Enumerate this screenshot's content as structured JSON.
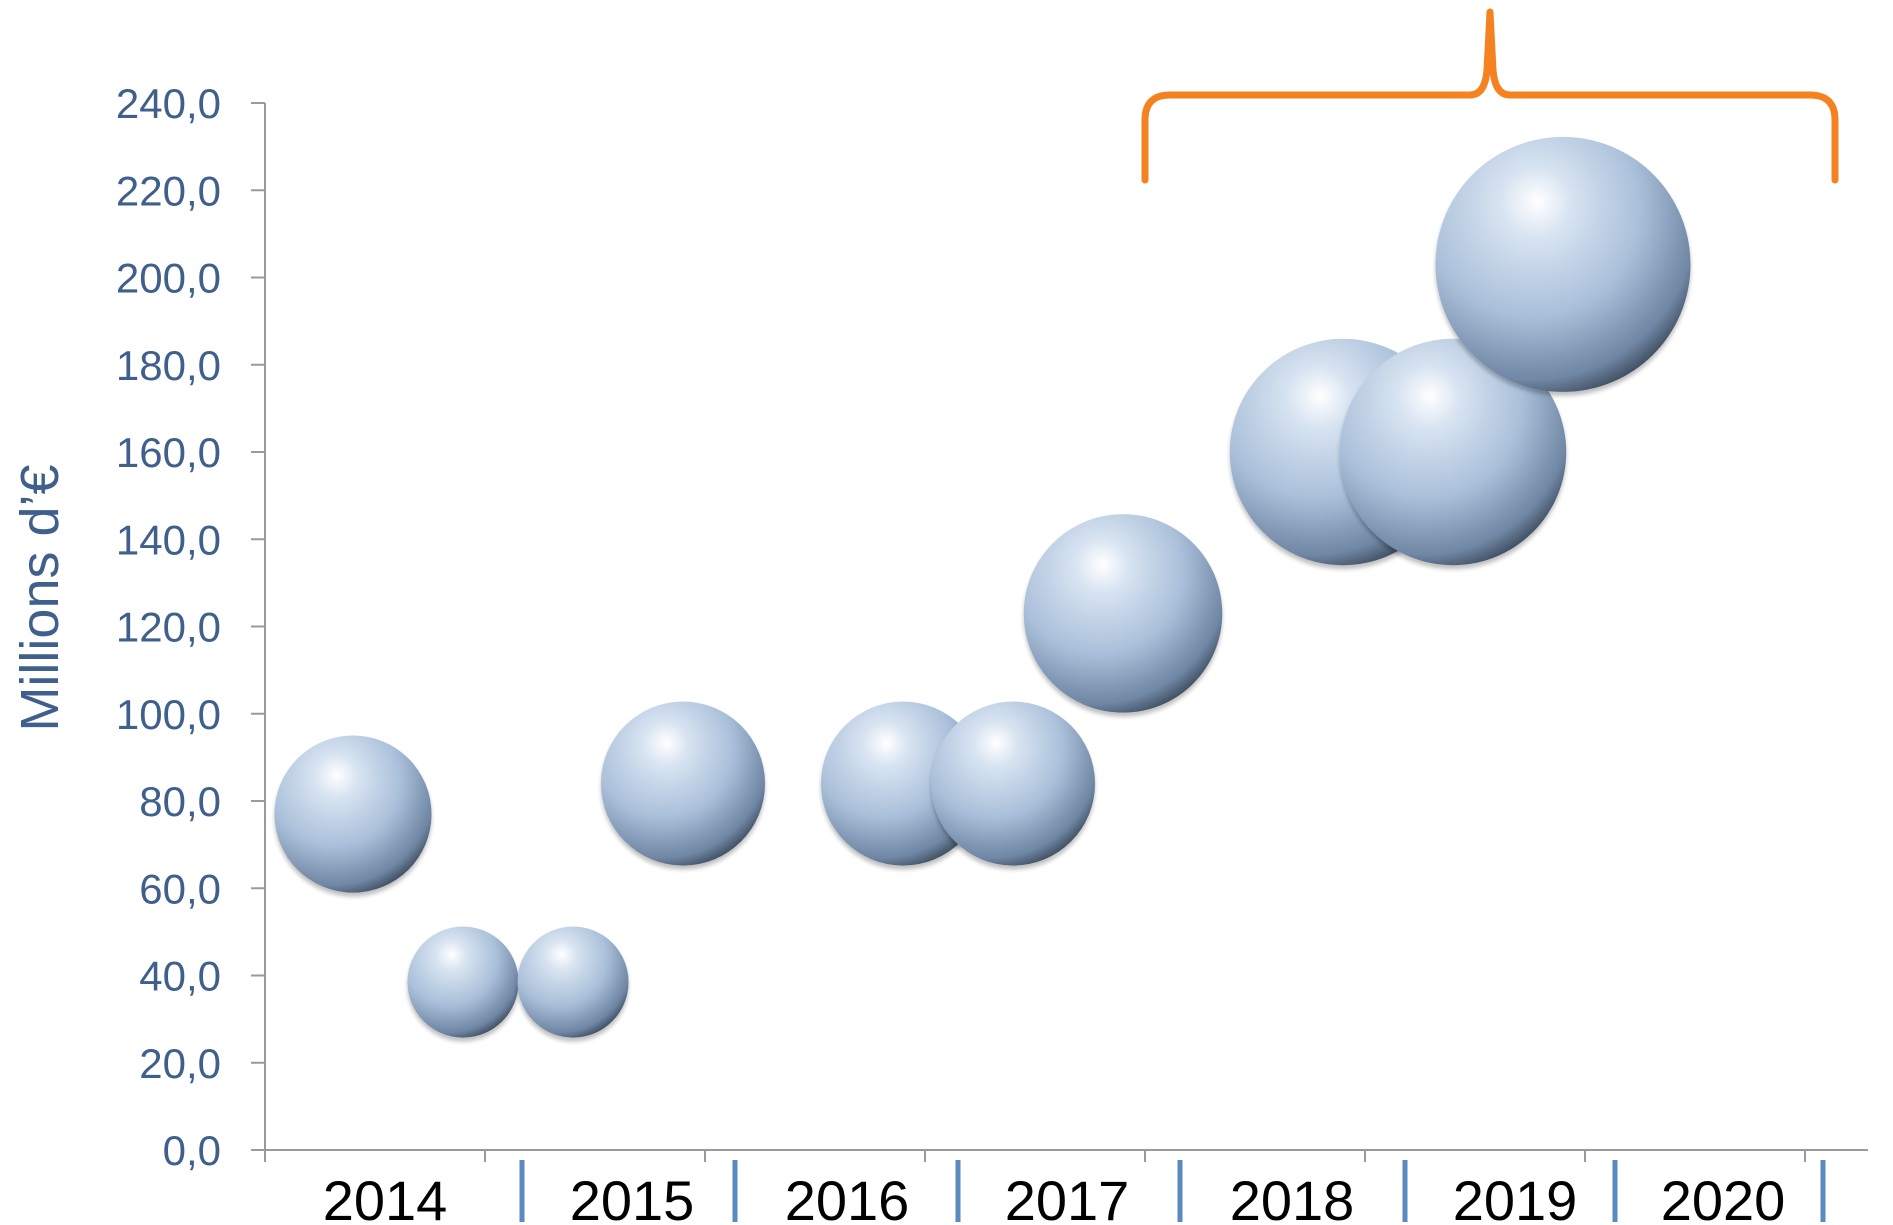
{
  "chart_data": {
    "type": "scatter",
    "subtype": "bubble",
    "title": "",
    "xlabel": "",
    "ylabel": "Millions d’€",
    "ylim": [
      0,
      240
    ],
    "yticks": [
      "0,0",
      "20,0",
      "40,0",
      "60,0",
      "80,0",
      "100,0",
      "120,0",
      "140,0",
      "160,0",
      "180,0",
      "200,0",
      "220,0",
      "240,0"
    ],
    "categories": [
      "2014",
      "2015",
      "2016",
      "2017",
      "2018",
      "2019",
      "2020"
    ],
    "grid": false,
    "legend": "none",
    "points": [
      {
        "x": 0.4,
        "y": 77,
        "size": 77
      },
      {
        "x": 0.9,
        "y": 38.5,
        "size": 38.5
      },
      {
        "x": 1.4,
        "y": 38.5,
        "size": 38.5
      },
      {
        "x": 1.9,
        "y": 84,
        "size": 84
      },
      {
        "x": 2.9,
        "y": 84,
        "size": 84
      },
      {
        "x": 3.4,
        "y": 84,
        "size": 84
      },
      {
        "x": 3.9,
        "y": 123,
        "size": 123
      },
      {
        "x": 4.9,
        "y": 160,
        "size": 160
      },
      {
        "x": 5.4,
        "y": 160,
        "size": 160
      },
      {
        "x": 5.9,
        "y": 203,
        "size": 203
      }
    ],
    "annotation": {
      "type": "brace",
      "spans": [
        "2018",
        "2020"
      ]
    },
    "colors": {
      "axis_text": "#3f5f8c",
      "brace": "#f58220",
      "bubble": "#a9bfd9",
      "separator": "#5b8ac0",
      "axis_line": "#9a9a9a"
    }
  }
}
